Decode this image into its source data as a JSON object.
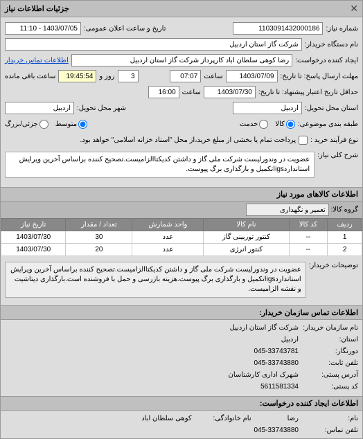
{
  "header": {
    "title": "جزئیات اطلاعات نیاز"
  },
  "form": {
    "request_number_label": "شماره نیاز:",
    "request_number": "1103091432000186",
    "announce_datetime_label": "تاریخ و ساعت اعلان عمومی:",
    "announce_datetime": "1403/07/05 - 11:10",
    "buyer_name_label": "نام دستگاه خریدار:",
    "buyer_name": "شرکت گاز استان اردبیل",
    "requester_label": "ایجاد کننده درخواست:",
    "requester": "رضا کوهی سلطان اباد کارپرداز شرکت گاز استان اردبیل",
    "contact_link": "اطلاعات تماس خریدار",
    "reply_deadline_label": "مهلت ارسال پاسخ: تا تاریخ:",
    "reply_deadline_date": "1403/07/09",
    "reply_deadline_time_label": "ساعت",
    "reply_deadline_time": "07:07",
    "remaining_days": "3",
    "remaining_days_label": "روز و",
    "remaining_time": "19:45:54",
    "remaining_suffix": "ساعت باقی مانده",
    "validity_label": "حداقل تاریخ اعتبار پیشنهاد: تا تاریخ:",
    "validity_date": "1403/07/30",
    "validity_time_label": "ساعت",
    "validity_time": "16:00",
    "delivery_province_label": "استان محل تحویل:",
    "delivery_province": "اردبیل",
    "delivery_city_label": "شهر محل تحویل:",
    "delivery_city": "اردبیل",
    "category_label": "طبقه بندی موضوعی:",
    "cat_goods": "کالا",
    "cat_services": "خدمت",
    "cat_mid": "متوسط",
    "cat_large_small": "جزئی/بزرگ",
    "purchase_type_label": "نوع فرآیند خرید :",
    "purchase_type_note": "پرداخت تمام یا بخشی از مبلغ خرید،از محل \"اسناد خزانه اسلامی\" خواهد بود.",
    "general_desc_label": "شرح کلی نیاز:",
    "general_desc": "عضویت در وندورلیست شرکت ملی گاز و داشتن کدیکتاالزامیست.تصحیح کننده براساس آخرین ویرایش استانداردigsاتکمیل و بارگذاری برگ پیوست."
  },
  "goods_section": {
    "title": "اطلاعات کالاهای مورد نیاز",
    "group_label": "گروه کالا:",
    "group_value": "تعمیر و نگهداری",
    "columns": [
      "ردیف",
      "کد کالا",
      "نام کالا",
      "واحد شمارش",
      "تعداد / مقدار",
      "تاریخ نیاز"
    ],
    "rows": [
      [
        "1",
        "--",
        "کنتور توربینی گاز",
        "عدد",
        "30",
        "1403/07/30"
      ],
      [
        "2",
        "--",
        "کنتور انرژی",
        "عدد",
        "20",
        "1403/07/30"
      ]
    ],
    "buyer_notes_label": "توضیحات خریدار:",
    "buyer_notes": "عضویت در وندورلیست شرکت ملی گاز و داشتن کدیکتاالزامیست.تصحیح کننده براساس آخرین ویرایش استانداردigsاتکمیل و بارگذاری برگ پیوست.هزینه بازرسی و حمل با فروشنده است.بارگذاری دیتاشیت و نقشه الزامیست."
  },
  "contact_section": {
    "title": "اطلاعات تماس سازمان خریدار:",
    "org_label": "نام سازمان خریدار:",
    "org": "شرکت گاز استان اردبیل",
    "province_label": "استان:",
    "province": "اردبیل",
    "fax_label": "دورنگار:",
    "fax": "045-33743781",
    "phone_label": "تلفن ثابت:",
    "phone": "045-33743880",
    "address_label": "آدرس پستی:",
    "address": "شهرک اداری کارشناسان",
    "postal_label": "کد پستی:",
    "postal": "5611581334",
    "creator_title": "اطلاعات ایجاد کننده درخواست:",
    "creator_name_label": "نام:",
    "creator_name": "رضا",
    "creator_lname_label": "نام خانوادگی:",
    "creator_lname": "کوهی سلطان اباد",
    "creator_phone_label": "تلفن تماس:",
    "creator_phone": "045-33743880"
  }
}
